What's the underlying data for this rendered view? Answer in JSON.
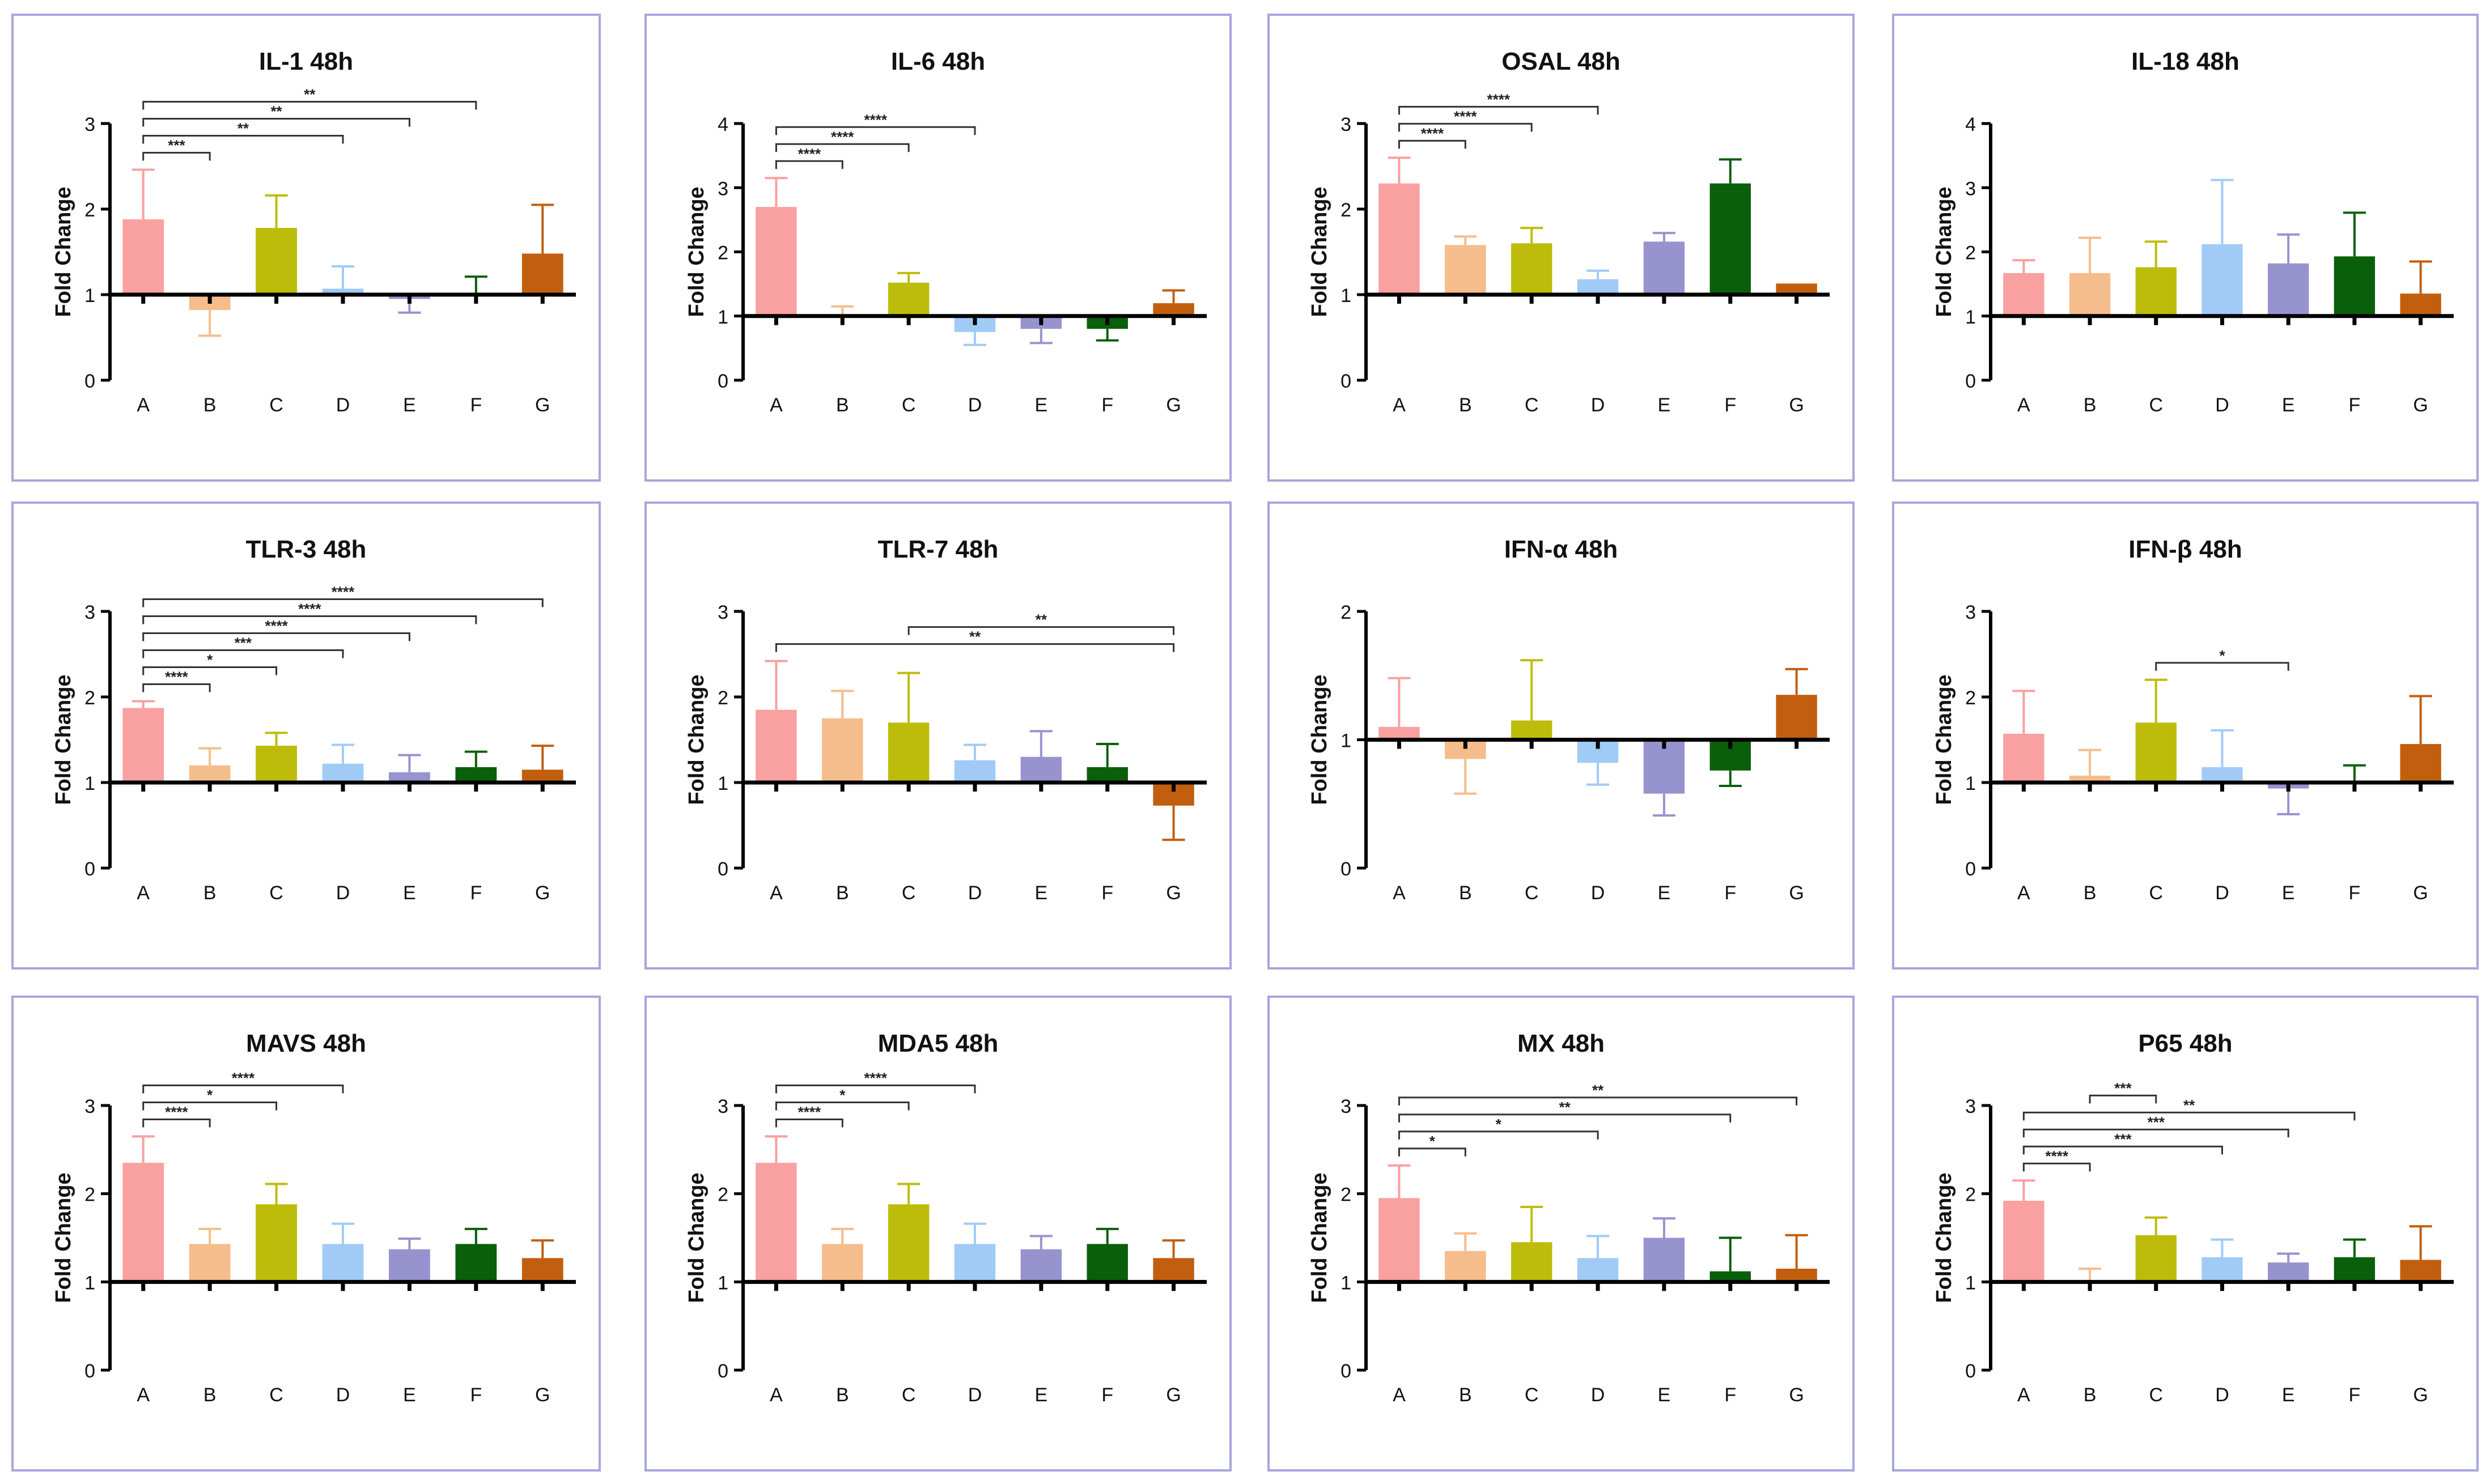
{
  "y_axis_label": "Fold Change",
  "chart_data": [
    {
      "type": "bar",
      "title": "IL-1 48h",
      "ylabel": "Fold Change",
      "ylim": [
        0,
        3
      ],
      "yticks": [
        0,
        1,
        2,
        3
      ],
      "baseline": 1,
      "categories": [
        "A",
        "B",
        "C",
        "D",
        "E",
        "F",
        "G"
      ],
      "values": [
        1.88,
        0.82,
        1.78,
        1.07,
        0.95,
        1.0,
        1.48
      ],
      "errors": [
        0.58,
        0.3,
        0.38,
        0.26,
        0.16,
        0.21,
        0.57
      ],
      "significance": [
        {
          "from": "A",
          "to": "B",
          "label": "***"
        },
        {
          "from": "A",
          "to": "D",
          "label": "**"
        },
        {
          "from": "A",
          "to": "E",
          "label": "**"
        },
        {
          "from": "A",
          "to": "F",
          "label": "**"
        }
      ]
    },
    {
      "type": "bar",
      "title": "IL-6 48h",
      "ylabel": "Fold Change",
      "ylim": [
        0,
        4
      ],
      "yticks": [
        0,
        1,
        2,
        3,
        4
      ],
      "baseline": 1,
      "categories": [
        "A",
        "B",
        "C",
        "D",
        "E",
        "F",
        "G"
      ],
      "values": [
        2.7,
        1.0,
        1.52,
        0.75,
        0.8,
        0.8,
        1.2
      ],
      "errors": [
        0.45,
        0.15,
        0.15,
        0.2,
        0.22,
        0.18,
        0.2
      ],
      "significance": [
        {
          "from": "A",
          "to": "B",
          "label": "****"
        },
        {
          "from": "A",
          "to": "C",
          "label": "****"
        },
        {
          "from": "A",
          "to": "D",
          "label": "****"
        }
      ]
    },
    {
      "type": "bar",
      "title": "OSAL 48h",
      "ylabel": "Fold Change",
      "ylim": [
        0,
        3
      ],
      "yticks": [
        0,
        1,
        2,
        3
      ],
      "baseline": 1,
      "categories": [
        "A",
        "B",
        "C",
        "D",
        "E",
        "F",
        "G"
      ],
      "values": [
        2.3,
        1.58,
        1.6,
        1.18,
        1.62,
        2.3,
        1.13
      ],
      "errors": [
        0.3,
        0.1,
        0.18,
        0.1,
        0.1,
        0.28,
        0
      ],
      "significance": [
        {
          "from": "A",
          "to": "B",
          "label": "****"
        },
        {
          "from": "A",
          "to": "C",
          "label": "****"
        },
        {
          "from": "A",
          "to": "D",
          "label": "****"
        }
      ]
    },
    {
      "type": "bar",
      "title": "IL-18 48h",
      "ylabel": "Fold Change",
      "ylim": [
        0,
        4
      ],
      "yticks": [
        0,
        1,
        2,
        3,
        4
      ],
      "baseline": 1,
      "categories": [
        "A",
        "B",
        "C",
        "D",
        "E",
        "F",
        "G"
      ],
      "values": [
        1.67,
        1.67,
        1.76,
        2.12,
        1.82,
        1.93,
        1.35
      ],
      "errors": [
        0.2,
        0.55,
        0.4,
        1.0,
        0.45,
        0.68,
        0.5
      ],
      "significance": []
    },
    {
      "type": "bar",
      "title": "TLR-3 48h",
      "ylabel": "Fold Change",
      "ylim": [
        0,
        3
      ],
      "yticks": [
        0,
        1,
        2,
        3
      ],
      "baseline": 1,
      "categories": [
        "A",
        "B",
        "C",
        "D",
        "E",
        "F",
        "G"
      ],
      "values": [
        1.87,
        1.2,
        1.43,
        1.22,
        1.12,
        1.18,
        1.15
      ],
      "errors": [
        0.08,
        0.2,
        0.15,
        0.22,
        0.2,
        0.18,
        0.28
      ],
      "significance": [
        {
          "from": "A",
          "to": "B",
          "label": "****"
        },
        {
          "from": "A",
          "to": "C",
          "label": "*"
        },
        {
          "from": "A",
          "to": "D",
          "label": "***"
        },
        {
          "from": "A",
          "to": "E",
          "label": "****"
        },
        {
          "from": "A",
          "to": "F",
          "label": "****"
        },
        {
          "from": "A",
          "to": "G",
          "label": "****"
        }
      ]
    },
    {
      "type": "bar",
      "title": "TLR-7 48h",
      "ylabel": "Fold Change",
      "ylim": [
        0,
        3
      ],
      "yticks": [
        0,
        1,
        2,
        3
      ],
      "baseline": 1,
      "categories": [
        "A",
        "B",
        "C",
        "D",
        "E",
        "F",
        "G"
      ],
      "values": [
        1.85,
        1.75,
        1.7,
        1.26,
        1.3,
        1.18,
        0.73
      ],
      "errors": [
        0.57,
        0.32,
        0.58,
        0.18,
        0.3,
        0.27,
        0.4
      ],
      "significance": [
        {
          "from": "A",
          "to": "G",
          "label": "**"
        },
        {
          "from": "C",
          "to": "G",
          "label": "**"
        }
      ]
    },
    {
      "type": "bar",
      "title": "IFN-α 48h",
      "ylabel": "Fold Change",
      "ylim": [
        0,
        2
      ],
      "yticks": [
        0,
        1,
        2
      ],
      "baseline": 1,
      "categories": [
        "A",
        "B",
        "C",
        "D",
        "E",
        "F",
        "G"
      ],
      "values": [
        1.1,
        0.85,
        1.15,
        0.82,
        0.58,
        0.76,
        1.35
      ],
      "errors": [
        0.38,
        0.27,
        0.47,
        0.17,
        0.17,
        0.12,
        0.2
      ],
      "significance": []
    },
    {
      "type": "bar",
      "title": "IFN-β 48h",
      "ylabel": "Fold Change",
      "ylim": [
        0,
        3
      ],
      "yticks": [
        0,
        1,
        2,
        3
      ],
      "baseline": 1,
      "categories": [
        "A",
        "B",
        "C",
        "D",
        "E",
        "F",
        "G"
      ],
      "values": [
        1.57,
        1.08,
        1.7,
        1.18,
        0.93,
        1.0,
        1.45
      ],
      "errors": [
        0.5,
        0.3,
        0.5,
        0.43,
        0.3,
        0.2,
        0.56
      ],
      "significance": [
        {
          "from": "C",
          "to": "E",
          "label": "*"
        }
      ]
    },
    {
      "type": "bar",
      "title": "MAVS 48h",
      "ylabel": "Fold Change",
      "ylim": [
        0,
        3
      ],
      "yticks": [
        0,
        1,
        2,
        3
      ],
      "baseline": 1,
      "categories": [
        "A",
        "B",
        "C",
        "D",
        "E",
        "F",
        "G"
      ],
      "values": [
        2.35,
        1.43,
        1.88,
        1.43,
        1.37,
        1.43,
        1.27
      ],
      "errors": [
        0.3,
        0.17,
        0.23,
        0.23,
        0.12,
        0.17,
        0.2
      ],
      "significance": [
        {
          "from": "A",
          "to": "B",
          "label": "****"
        },
        {
          "from": "A",
          "to": "C",
          "label": "*"
        },
        {
          "from": "A",
          "to": "D",
          "label": "****"
        }
      ]
    },
    {
      "type": "bar",
      "title": "MDA5 48h",
      "ylabel": "Fold Change",
      "ylim": [
        0,
        3
      ],
      "yticks": [
        0,
        1,
        2,
        3
      ],
      "baseline": 1,
      "categories": [
        "A",
        "B",
        "C",
        "D",
        "E",
        "F",
        "G"
      ],
      "values": [
        2.35,
        1.43,
        1.88,
        1.43,
        1.37,
        1.43,
        1.27
      ],
      "errors": [
        0.3,
        0.17,
        0.23,
        0.23,
        0.15,
        0.17,
        0.2
      ],
      "significance": [
        {
          "from": "A",
          "to": "B",
          "label": "****"
        },
        {
          "from": "A",
          "to": "C",
          "label": "*"
        },
        {
          "from": "A",
          "to": "D",
          "label": "****"
        }
      ]
    },
    {
      "type": "bar",
      "title": "MX 48h",
      "ylabel": "Fold Change",
      "ylim": [
        0,
        3
      ],
      "yticks": [
        0,
        1,
        2,
        3
      ],
      "baseline": 1,
      "categories": [
        "A",
        "B",
        "C",
        "D",
        "E",
        "F",
        "G"
      ],
      "values": [
        1.95,
        1.35,
        1.45,
        1.27,
        1.5,
        1.12,
        1.15
      ],
      "errors": [
        0.37,
        0.2,
        0.4,
        0.25,
        0.22,
        0.38,
        0.38
      ],
      "significance": [
        {
          "from": "A",
          "to": "B",
          "label": "*"
        },
        {
          "from": "A",
          "to": "D",
          "label": "*"
        },
        {
          "from": "A",
          "to": "F",
          "label": "**"
        },
        {
          "from": "A",
          "to": "G",
          "label": "**"
        }
      ]
    },
    {
      "type": "bar",
      "title": "P65 48h",
      "ylabel": "Fold Change",
      "ylim": [
        0,
        3
      ],
      "yticks": [
        0,
        1,
        2,
        3
      ],
      "baseline": 1,
      "categories": [
        "A",
        "B",
        "C",
        "D",
        "E",
        "F",
        "G"
      ],
      "values": [
        1.92,
        1.0,
        1.53,
        1.28,
        1.22,
        1.28,
        1.25
      ],
      "errors": [
        0.23,
        0.15,
        0.2,
        0.2,
        0.1,
        0.2,
        0.38
      ],
      "significance": [
        {
          "from": "A",
          "to": "B",
          "label": "****"
        },
        {
          "from": "A",
          "to": "D",
          "label": "***"
        },
        {
          "from": "A",
          "to": "E",
          "label": "***"
        },
        {
          "from": "A",
          "to": "F",
          "label": "**"
        },
        {
          "from": "C",
          "to": "B",
          "label": "***"
        }
      ]
    }
  ],
  "colors": [
    "#f9a0a0",
    "#f5bd8c",
    "#bebc0a",
    "#a1cbf7",
    "#9793cf",
    "#0a5f0a",
    "#c15f0f"
  ],
  "border_color": "#a8a6dc"
}
